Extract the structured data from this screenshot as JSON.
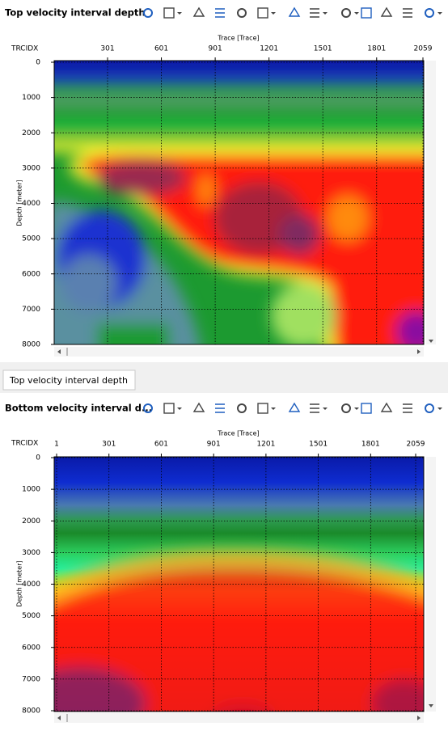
{
  "panels": [
    {
      "title": "Top velocity interval depth",
      "x_axis_label": "Trace [Trace]",
      "x_index_label": "TRCIDX",
      "y_axis_label": "Depth [meter]",
      "xticks": [
        301,
        601,
        901,
        1201,
        1501,
        1801,
        2059
      ],
      "yticks": [
        0,
        1000,
        2000,
        3000,
        4000,
        5000,
        6000,
        7000,
        8000
      ]
    },
    {
      "title": "Bottom velocity interval d...",
      "x_axis_label": "Trace [Trace]",
      "x_index_label": "TRCIDX",
      "y_axis_label": "Depth [meter]",
      "xticks": [
        1,
        301,
        601,
        901,
        1201,
        1501,
        1801,
        2059
      ],
      "yticks": [
        0,
        1000,
        2000,
        3000,
        4000,
        5000,
        6000,
        7000,
        8000
      ]
    }
  ],
  "tab": {
    "label": "Top velocity interval depth"
  }
}
